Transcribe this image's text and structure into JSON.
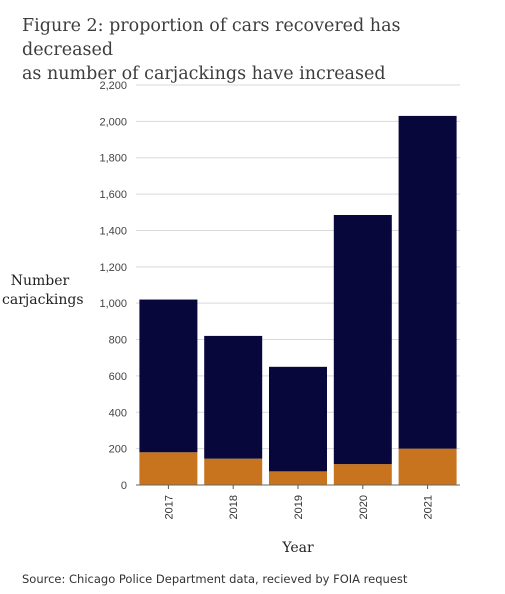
{
  "chart_data": {
    "type": "bar",
    "stacked": true,
    "title": "Figure 2: proportion of cars recovered has decreased\n as number of carjackings have increased",
    "xlabel": "Year",
    "ylabel": "Number\ncarjackings",
    "categories": [
      "2017",
      "2018",
      "2019",
      "2020",
      "2021"
    ],
    "series": [
      {
        "values": [
          180,
          145,
          75,
          115,
          200
        ],
        "color": "#c8741e"
      },
      {
        "values": [
          840,
          675,
          575,
          1370,
          1830
        ],
        "color": "#07073b"
      }
    ],
    "totals": [
      1020,
      820,
      650,
      1485,
      2030
    ],
    "ylim": [
      0,
      2200
    ],
    "yticks": [
      "0",
      "200",
      "400",
      "600",
      "800",
      "1,000",
      "1,200",
      "1,400",
      "1,600",
      "1,800",
      "2,000",
      "2,200"
    ],
    "ytick_values": [
      0,
      200,
      400,
      600,
      800,
      1000,
      1200,
      1400,
      1600,
      1800,
      2000,
      2200
    ],
    "grid": true,
    "x_tick_rotation": "vertical"
  },
  "source": "Source: Chicago Police Department data, recieved by FOIA request"
}
